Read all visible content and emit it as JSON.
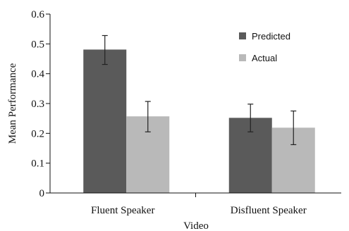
{
  "chart_data": {
    "type": "bar",
    "categories": [
      "Fluent Speaker",
      "Disfluent Speaker"
    ],
    "series": [
      {
        "name": "Predicted",
        "color": "#5a5a5a",
        "values": [
          0.481,
          0.252
        ],
        "error_low": [
          0.431,
          0.205
        ],
        "error_high": [
          0.528,
          0.298
        ]
      },
      {
        "name": "Actual",
        "color": "#b9b9b9",
        "values": [
          0.257,
          0.219
        ],
        "error_low": [
          0.205,
          0.162
        ],
        "error_high": [
          0.307,
          0.275
        ]
      }
    ],
    "xlabel": "Video",
    "ylabel": "Mean Performance",
    "ylim": [
      0,
      0.6
    ],
    "yticks": [
      "0",
      "0.1",
      "0.2",
      "0.3",
      "0.4",
      "0.5",
      "0.6"
    ],
    "grid": false,
    "legend_position": "top-right"
  }
}
